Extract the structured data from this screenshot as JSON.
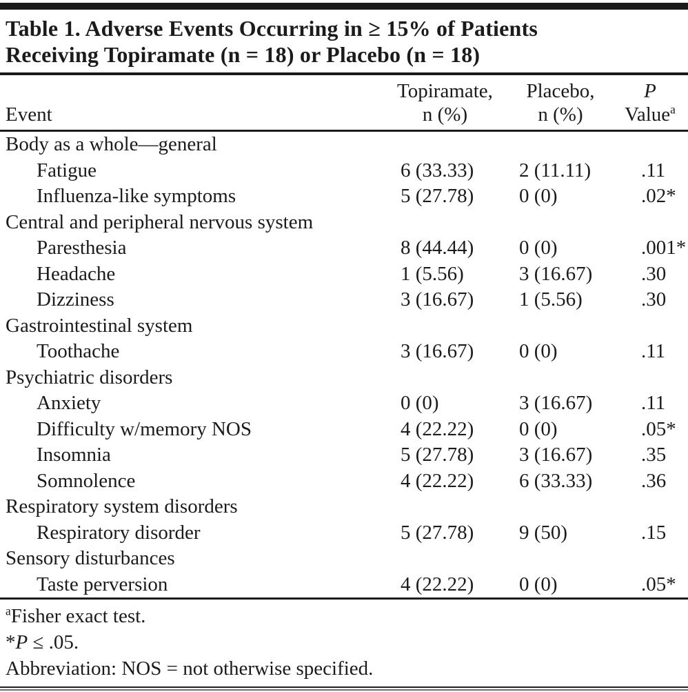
{
  "colors": {
    "ink": "#1b1b1b",
    "background": "#ffffff"
  },
  "title": {
    "line1": "Table 1. Adverse Events Occurring in ≥ 15% of Patients",
    "line2": "Receiving Topiramate (n = 18) or Placebo (n = 18)"
  },
  "header": {
    "event": "Event",
    "topiramate_line1": "Topiramate,",
    "topiramate_line2": "n (%)",
    "placebo_line1": "Placebo,",
    "placebo_line2": "n (%)",
    "p_line1": "P",
    "p_line2": "Value",
    "p_sup": "a"
  },
  "rows": [
    {
      "type": "category",
      "event": "Body as a whole—general",
      "topiramate": "",
      "placebo": "",
      "p": ""
    },
    {
      "type": "item",
      "event": "Fatigue",
      "topiramate": "6 (33.33)",
      "placebo": "2 (11.11)",
      "p": ".11"
    },
    {
      "type": "item",
      "event": "Influenza-like symptoms",
      "topiramate": "5 (27.78)",
      "placebo": "0 (0)",
      "p": ".02*"
    },
    {
      "type": "category",
      "event": "Central and peripheral nervous system",
      "topiramate": "",
      "placebo": "",
      "p": ""
    },
    {
      "type": "item",
      "event": "Paresthesia",
      "topiramate": "8 (44.44)",
      "placebo": "0 (0)",
      "p": ".001*"
    },
    {
      "type": "item",
      "event": "Headache",
      "topiramate": "1 (5.56)",
      "placebo": "3 (16.67)",
      "p": ".30"
    },
    {
      "type": "item",
      "event": "Dizziness",
      "topiramate": "3 (16.67)",
      "placebo": "1 (5.56)",
      "p": ".30"
    },
    {
      "type": "category",
      "event": "Gastrointestinal system",
      "topiramate": "",
      "placebo": "",
      "p": ""
    },
    {
      "type": "item",
      "event": "Toothache",
      "topiramate": "3 (16.67)",
      "placebo": "0 (0)",
      "p": ".11"
    },
    {
      "type": "category",
      "event": "Psychiatric disorders",
      "topiramate": "",
      "placebo": "",
      "p": ""
    },
    {
      "type": "item",
      "event": "Anxiety",
      "topiramate": "0 (0)",
      "placebo": "3 (16.67)",
      "p": ".11"
    },
    {
      "type": "item",
      "event": "Difficulty w/memory NOS",
      "topiramate": "4 (22.22)",
      "placebo": "0 (0)",
      "p": ".05*"
    },
    {
      "type": "item",
      "event": "Insomnia",
      "topiramate": "5 (27.78)",
      "placebo": "3 (16.67)",
      "p": ".35"
    },
    {
      "type": "item",
      "event": "Somnolence",
      "topiramate": "4 (22.22)",
      "placebo": "6 (33.33)",
      "p": ".36"
    },
    {
      "type": "category",
      "event": "Respiratory system disorders",
      "topiramate": "",
      "placebo": "",
      "p": ""
    },
    {
      "type": "item",
      "event": "Respiratory disorder",
      "topiramate": "5 (27.78)",
      "placebo": "9 (50)",
      "p": ".15"
    },
    {
      "type": "category",
      "event": "Sensory disturbances",
      "topiramate": "",
      "placebo": "",
      "p": ""
    },
    {
      "type": "item",
      "event": "Taste perversion",
      "topiramate": "4 (22.22)",
      "placebo": "0 (0)",
      "p": ".05*"
    }
  ],
  "footnotes": [
    {
      "sup": "a",
      "text": "Fisher exact test."
    },
    {
      "pre": "*",
      "italic": "P",
      "post": " ≤ .05."
    },
    {
      "text": "Abbreviation: NOS = not otherwise specified."
    }
  ]
}
